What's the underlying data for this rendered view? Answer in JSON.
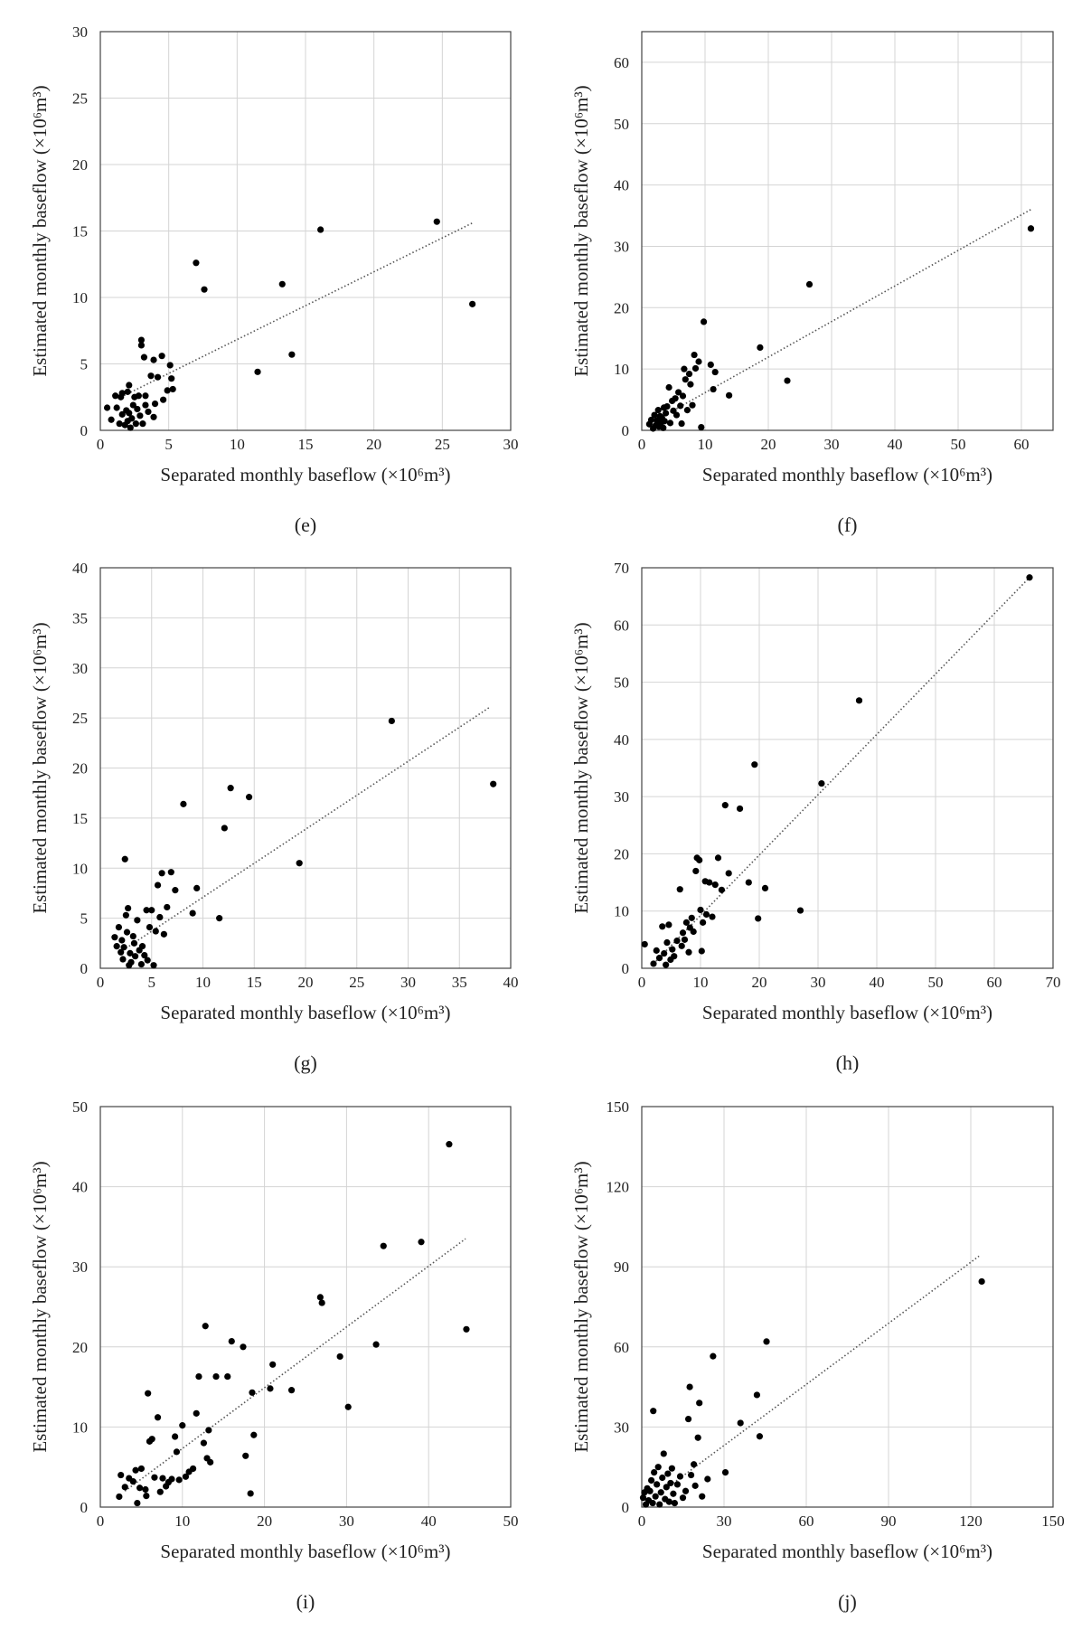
{
  "chart_data": [
    {
      "type": "scatter",
      "panel_label": "(e)",
      "xlabel": "Separated monthly baseflow (×10⁶m³)",
      "ylabel": "Estimated monthly baseflow (×10⁶m³)",
      "xlim": [
        0,
        30
      ],
      "ylim": [
        0,
        30
      ],
      "xticks": [
        0,
        5,
        10,
        15,
        20,
        25,
        30
      ],
      "yticks": [
        0,
        5,
        10,
        15,
        20,
        25,
        30
      ],
      "grid": true,
      "trendline": {
        "style": "dotted",
        "x": [
          1.5,
          27.2
        ],
        "y": [
          2.5,
          15.6
        ]
      },
      "points": [
        [
          0.5,
          1.7
        ],
        [
          0.8,
          0.8
        ],
        [
          1.1,
          2.6
        ],
        [
          1.2,
          1.7
        ],
        [
          1.4,
          0.5
        ],
        [
          1.5,
          2.5
        ],
        [
          1.6,
          1.2
        ],
        [
          1.6,
          2.8
        ],
        [
          1.8,
          0.4
        ],
        [
          1.9,
          1.5
        ],
        [
          2.0,
          2.9
        ],
        [
          2.0,
          0.7
        ],
        [
          2.1,
          1.3
        ],
        [
          2.1,
          3.4
        ],
        [
          2.2,
          0.2
        ],
        [
          2.3,
          0.9
        ],
        [
          2.4,
          1.9
        ],
        [
          2.5,
          2.5
        ],
        [
          2.6,
          0.5
        ],
        [
          2.7,
          1.6
        ],
        [
          2.8,
          2.6
        ],
        [
          2.9,
          1.1
        ],
        [
          3.0,
          6.4
        ],
        [
          3.0,
          6.8
        ],
        [
          3.1,
          0.5
        ],
        [
          3.2,
          5.5
        ],
        [
          3.3,
          1.9
        ],
        [
          3.3,
          2.6
        ],
        [
          3.5,
          1.4
        ],
        [
          3.7,
          4.1
        ],
        [
          3.9,
          5.3
        ],
        [
          3.9,
          1.0
        ],
        [
          4.0,
          2.0
        ],
        [
          4.2,
          4.0
        ],
        [
          4.5,
          5.6
        ],
        [
          4.6,
          2.3
        ],
        [
          4.9,
          3.0
        ],
        [
          5.1,
          4.9
        ],
        [
          5.2,
          3.9
        ],
        [
          5.3,
          3.1
        ],
        [
          7.0,
          12.6
        ],
        [
          7.6,
          10.6
        ],
        [
          11.5,
          4.4
        ],
        [
          13.3,
          11.0
        ],
        [
          14.0,
          5.7
        ],
        [
          16.1,
          15.1
        ],
        [
          24.6,
          15.7
        ],
        [
          27.2,
          9.5
        ]
      ]
    },
    {
      "type": "scatter",
      "panel_label": "(f)",
      "xlabel": "Separated monthly baseflow (×10⁶m³)",
      "ylabel": "Estimated monthly baseflow (×10⁶m³)",
      "xlim": [
        0,
        65
      ],
      "ylim": [
        0,
        65
      ],
      "xticks": [
        0,
        10,
        20,
        30,
        40,
        50,
        60
      ],
      "yticks": [
        0,
        10,
        20,
        30,
        40,
        50,
        60
      ],
      "grid": true,
      "trendline": {
        "style": "dotted",
        "x": [
          2.0,
          61.5
        ],
        "y": [
          1.5,
          36.0
        ]
      },
      "points": [
        [
          1.2,
          1.0
        ],
        [
          1.5,
          1.7
        ],
        [
          1.8,
          0.3
        ],
        [
          2.0,
          2.5
        ],
        [
          2.2,
          0.8
        ],
        [
          2.4,
          1.6
        ],
        [
          2.6,
          3.3
        ],
        [
          2.7,
          0.6
        ],
        [
          2.9,
          2.3
        ],
        [
          3.0,
          1.2
        ],
        [
          3.2,
          2.0
        ],
        [
          3.4,
          0.4
        ],
        [
          3.5,
          3.7
        ],
        [
          3.6,
          1.5
        ],
        [
          3.8,
          2.8
        ],
        [
          4.0,
          3.9
        ],
        [
          4.3,
          7.0
        ],
        [
          4.5,
          1.2
        ],
        [
          4.8,
          4.8
        ],
        [
          5.0,
          3.2
        ],
        [
          5.3,
          5.2
        ],
        [
          5.5,
          2.5
        ],
        [
          5.8,
          6.2
        ],
        [
          6.1,
          4.0
        ],
        [
          6.3,
          1.1
        ],
        [
          6.5,
          5.6
        ],
        [
          6.7,
          10.0
        ],
        [
          6.9,
          8.3
        ],
        [
          7.2,
          3.3
        ],
        [
          7.5,
          9.2
        ],
        [
          7.7,
          7.5
        ],
        [
          8.0,
          4.1
        ],
        [
          8.3,
          12.3
        ],
        [
          8.5,
          10.1
        ],
        [
          9.0,
          11.2
        ],
        [
          9.4,
          0.5
        ],
        [
          9.8,
          17.7
        ],
        [
          10.9,
          10.7
        ],
        [
          11.3,
          6.7
        ],
        [
          11.6,
          9.5
        ],
        [
          13.8,
          5.7
        ],
        [
          18.7,
          13.5
        ],
        [
          23.0,
          8.1
        ],
        [
          26.5,
          23.8
        ],
        [
          61.5,
          32.9
        ]
      ]
    },
    {
      "type": "scatter",
      "panel_label": "(g)",
      "xlabel": "Separated monthly baseflow (×10⁶m³)",
      "ylabel": "Estimated monthly baseflow (×10⁶m³)",
      "xlim": [
        0,
        40
      ],
      "ylim": [
        0,
        40
      ],
      "xticks": [
        0,
        5,
        10,
        15,
        20,
        25,
        30,
        35,
        40
      ],
      "yticks": [
        0,
        5,
        10,
        15,
        20,
        25,
        30,
        35,
        40
      ],
      "grid": true,
      "trendline": {
        "style": "dotted",
        "x": [
          2.5,
          38.0
        ],
        "y": [
          2.0,
          26.1
        ]
      },
      "points": [
        [
          1.4,
          3.1
        ],
        [
          1.6,
          2.2
        ],
        [
          1.8,
          4.1
        ],
        [
          2.0,
          1.6
        ],
        [
          2.1,
          2.8
        ],
        [
          2.2,
          0.9
        ],
        [
          2.3,
          2.1
        ],
        [
          2.4,
          10.9
        ],
        [
          2.5,
          5.3
        ],
        [
          2.6,
          3.6
        ],
        [
          2.7,
          6.0
        ],
        [
          2.8,
          0.3
        ],
        [
          2.9,
          1.5
        ],
        [
          3.0,
          0.6
        ],
        [
          3.2,
          3.2
        ],
        [
          3.3,
          2.5
        ],
        [
          3.4,
          1.2
        ],
        [
          3.6,
          4.8
        ],
        [
          3.8,
          1.8
        ],
        [
          4.0,
          0.4
        ],
        [
          4.1,
          2.2
        ],
        [
          4.3,
          1.3
        ],
        [
          4.5,
          5.8
        ],
        [
          4.6,
          0.8
        ],
        [
          4.8,
          4.1
        ],
        [
          5.0,
          5.8
        ],
        [
          5.2,
          0.3
        ],
        [
          5.4,
          3.7
        ],
        [
          5.6,
          8.3
        ],
        [
          5.8,
          5.1
        ],
        [
          6.0,
          9.5
        ],
        [
          6.2,
          3.4
        ],
        [
          6.5,
          6.1
        ],
        [
          6.9,
          9.6
        ],
        [
          7.3,
          7.8
        ],
        [
          8.1,
          16.4
        ],
        [
          9.0,
          5.5
        ],
        [
          9.4,
          8.0
        ],
        [
          11.6,
          5.0
        ],
        [
          12.1,
          14.0
        ],
        [
          12.7,
          18.0
        ],
        [
          14.5,
          17.1
        ],
        [
          19.4,
          10.5
        ],
        [
          28.4,
          24.7
        ],
        [
          38.3,
          18.4
        ]
      ]
    },
    {
      "type": "scatter",
      "panel_label": "(h)",
      "xlabel": "Separated monthly baseflow (×10⁶m³)",
      "ylabel": "Estimated monthly baseflow (×10⁶m³)",
      "xlim": [
        0,
        70
      ],
      "ylim": [
        0,
        70
      ],
      "xticks": [
        0,
        10,
        20,
        30,
        40,
        50,
        60,
        70
      ],
      "yticks": [
        0,
        10,
        20,
        30,
        40,
        50,
        60,
        70
      ],
      "grid": true,
      "trendline": {
        "style": "dotted",
        "x": [
          2.0,
          66.0
        ],
        "y": [
          0.8,
          68.3
        ]
      },
      "points": [
        [
          0.5,
          4.2
        ],
        [
          2.0,
          0.8
        ],
        [
          2.5,
          3.1
        ],
        [
          3.0,
          1.8
        ],
        [
          3.5,
          7.3
        ],
        [
          3.8,
          2.6
        ],
        [
          4.1,
          0.6
        ],
        [
          4.3,
          4.5
        ],
        [
          4.6,
          7.6
        ],
        [
          4.9,
          1.5
        ],
        [
          5.2,
          3.3
        ],
        [
          5.5,
          2.1
        ],
        [
          6.0,
          4.8
        ],
        [
          6.5,
          13.8
        ],
        [
          6.8,
          3.9
        ],
        [
          7.0,
          6.2
        ],
        [
          7.3,
          5.0
        ],
        [
          7.6,
          8.0
        ],
        [
          8.0,
          2.8
        ],
        [
          8.2,
          7.1
        ],
        [
          8.5,
          8.8
        ],
        [
          8.8,
          6.4
        ],
        [
          9.2,
          17.0
        ],
        [
          9.4,
          19.3
        ],
        [
          9.8,
          18.9
        ],
        [
          10.0,
          10.2
        ],
        [
          10.2,
          3.0
        ],
        [
          10.4,
          8.0
        ],
        [
          10.8,
          15.2
        ],
        [
          11.0,
          9.4
        ],
        [
          11.5,
          15.0
        ],
        [
          12.0,
          9.0
        ],
        [
          12.5,
          14.6
        ],
        [
          13.0,
          19.3
        ],
        [
          13.6,
          13.7
        ],
        [
          14.2,
          28.5
        ],
        [
          14.8,
          16.6
        ],
        [
          16.7,
          27.9
        ],
        [
          18.2,
          15.0
        ],
        [
          19.2,
          35.6
        ],
        [
          19.8,
          8.7
        ],
        [
          21.0,
          14.0
        ],
        [
          27.0,
          10.1
        ],
        [
          30.6,
          32.3
        ],
        [
          37.0,
          46.8
        ],
        [
          66.0,
          68.3
        ]
      ]
    },
    {
      "type": "scatter",
      "panel_label": "(i)",
      "xlabel": "Separated monthly baseflow (×10⁶m³)",
      "ylabel": "Estimated monthly baseflow (×10⁶m³)",
      "xlim": [
        0,
        50
      ],
      "ylim": [
        0,
        50
      ],
      "xticks": [
        0,
        10,
        20,
        30,
        40,
        50
      ],
      "yticks": [
        0,
        10,
        20,
        30,
        40,
        50
      ],
      "grid": true,
      "trendline": {
        "style": "dotted",
        "x": [
          3.0,
          44.5
        ],
        "y": [
          2.0,
          33.5
        ]
      },
      "points": [
        [
          2.3,
          1.3
        ],
        [
          2.5,
          4.0
        ],
        [
          3.0,
          2.5
        ],
        [
          3.5,
          3.6
        ],
        [
          4.0,
          3.2
        ],
        [
          4.3,
          4.6
        ],
        [
          4.5,
          0.5
        ],
        [
          4.8,
          2.4
        ],
        [
          5.0,
          4.8
        ],
        [
          5.5,
          2.2
        ],
        [
          5.6,
          1.4
        ],
        [
          5.8,
          14.2
        ],
        [
          6.0,
          8.2
        ],
        [
          6.3,
          8.5
        ],
        [
          6.6,
          3.7
        ],
        [
          7.0,
          11.2
        ],
        [
          7.3,
          1.9
        ],
        [
          7.6,
          3.6
        ],
        [
          8.0,
          2.6
        ],
        [
          8.3,
          3.1
        ],
        [
          8.7,
          3.5
        ],
        [
          9.1,
          8.8
        ],
        [
          9.3,
          6.9
        ],
        [
          9.6,
          3.4
        ],
        [
          10.0,
          10.2
        ],
        [
          10.4,
          3.8
        ],
        [
          10.8,
          4.4
        ],
        [
          11.3,
          4.8
        ],
        [
          11.7,
          11.7
        ],
        [
          12.0,
          16.3
        ],
        [
          12.6,
          8.0
        ],
        [
          12.8,
          22.6
        ],
        [
          13.0,
          6.1
        ],
        [
          13.2,
          9.6
        ],
        [
          13.4,
          5.6
        ],
        [
          14.1,
          16.3
        ],
        [
          15.5,
          16.3
        ],
        [
          16.0,
          20.7
        ],
        [
          17.4,
          20.0
        ],
        [
          17.7,
          6.4
        ],
        [
          18.3,
          1.7
        ],
        [
          18.5,
          14.3
        ],
        [
          18.7,
          9.0
        ],
        [
          20.7,
          14.8
        ],
        [
          21.0,
          17.8
        ],
        [
          23.3,
          14.6
        ],
        [
          26.8,
          26.2
        ],
        [
          27.0,
          25.5
        ],
        [
          29.2,
          18.8
        ],
        [
          30.2,
          12.5
        ],
        [
          33.6,
          20.3
        ],
        [
          34.5,
          32.6
        ],
        [
          39.1,
          33.1
        ],
        [
          42.5,
          45.3
        ],
        [
          44.6,
          22.2
        ]
      ]
    },
    {
      "type": "scatter",
      "panel_label": "(j)",
      "xlabel": "Separated monthly baseflow (×10⁶m³)",
      "ylabel": "Estimated monthly baseflow (×10⁶m³)",
      "xlim": [
        0,
        150
      ],
      "ylim": [
        0,
        150
      ],
      "xticks": [
        0,
        30,
        60,
        90,
        120,
        150
      ],
      "yticks": [
        0,
        30,
        60,
        90,
        120,
        150
      ],
      "grid": true,
      "trendline": {
        "style": "dotted",
        "x": [
          3.0,
          123.0
        ],
        "y": [
          2.5,
          94.0
        ]
      },
      "points": [
        [
          0.5,
          3.5
        ],
        [
          1.0,
          5.5
        ],
        [
          1.5,
          1.0
        ],
        [
          2.0,
          7.0
        ],
        [
          2.5,
          2.5
        ],
        [
          3.0,
          6.0
        ],
        [
          3.5,
          10.0
        ],
        [
          4.0,
          1.5
        ],
        [
          4.2,
          36.0
        ],
        [
          4.5,
          13.0
        ],
        [
          5.0,
          4.0
        ],
        [
          5.5,
          8.5
        ],
        [
          6.0,
          15.0
        ],
        [
          6.5,
          1.0
        ],
        [
          7.0,
          5.5
        ],
        [
          7.5,
          11.0
        ],
        [
          8.0,
          20.0
        ],
        [
          8.5,
          3.0
        ],
        [
          9.0,
          7.5
        ],
        [
          9.5,
          12.5
        ],
        [
          10.0,
          2.0
        ],
        [
          10.5,
          9.0
        ],
        [
          11.0,
          14.5
        ],
        [
          11.5,
          5.0
        ],
        [
          12.0,
          1.5
        ],
        [
          13.0,
          8.5
        ],
        [
          14.0,
          11.5
        ],
        [
          15.0,
          3.5
        ],
        [
          16.0,
          6.0
        ],
        [
          17.0,
          33.0
        ],
        [
          17.5,
          45.0
        ],
        [
          18.0,
          12.0
        ],
        [
          19.0,
          16.0
        ],
        [
          19.5,
          8.0
        ],
        [
          20.5,
          26.0
        ],
        [
          21.0,
          39.0
        ],
        [
          22.0,
          4.0
        ],
        [
          24.0,
          10.5
        ],
        [
          26.0,
          56.5
        ],
        [
          30.5,
          13.0
        ],
        [
          36.0,
          31.5
        ],
        [
          42.0,
          42.0
        ],
        [
          43.0,
          26.5
        ],
        [
          45.5,
          62.0
        ],
        [
          124.0,
          84.5
        ]
      ]
    }
  ]
}
